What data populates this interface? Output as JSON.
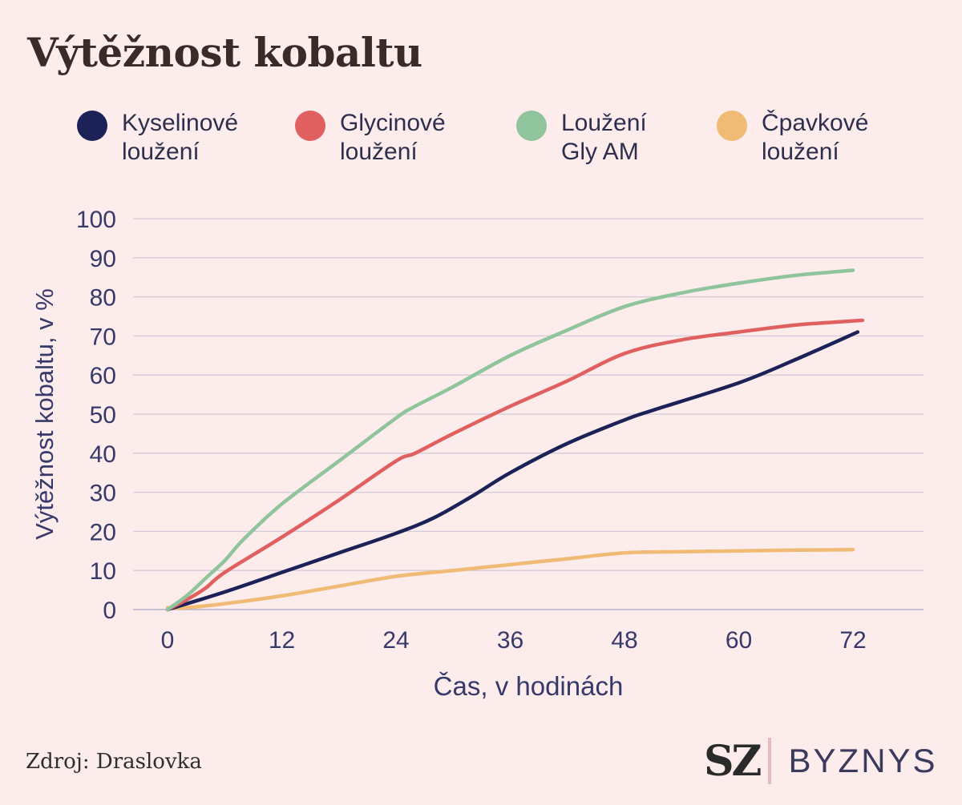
{
  "title": "Výtěžnost kobaltu",
  "source": "Zdroj: Draslovka",
  "brand": {
    "sz": "SZ",
    "byznys": "BYZNYS"
  },
  "legend": [
    {
      "line1": "Kyselinové",
      "line2": "loužení",
      "color": "#1c2257"
    },
    {
      "line1": "Glycinové",
      "line2": "loužení",
      "color": "#e0605f"
    },
    {
      "line1": "Loužení",
      "line2": "Gly AM",
      "color": "#8fc49c"
    },
    {
      "line1": "Čpavkové",
      "line2": "loužení",
      "color": "#f0bb74"
    }
  ],
  "chart_data": {
    "type": "line",
    "title": "Výtěžnost kobaltu",
    "xlabel": "Čas, v hodinách",
    "ylabel": "Výtěžnost kobaltu, v %",
    "xlim": [
      0,
      72
    ],
    "ylim": [
      0,
      100
    ],
    "xticks": [
      0,
      12,
      24,
      36,
      48,
      60,
      72
    ],
    "yticks": [
      0,
      10,
      20,
      30,
      40,
      50,
      60,
      70,
      80,
      90,
      100
    ],
    "grid": "horizontal",
    "legend_position": "top",
    "series": [
      {
        "name": "Kyselinové loužení",
        "color": "#1c2257",
        "points": [
          [
            0,
            0
          ],
          [
            6,
            4.5
          ],
          [
            12,
            9.5
          ],
          [
            18,
            14.5
          ],
          [
            24,
            19.5
          ],
          [
            28,
            23.5
          ],
          [
            32,
            29
          ],
          [
            36,
            35
          ],
          [
            42,
            42.5
          ],
          [
            48,
            48.5
          ],
          [
            51,
            51
          ],
          [
            60,
            58
          ],
          [
            66,
            64
          ],
          [
            72.5,
            71
          ]
        ]
      },
      {
        "name": "Glycinové loužení",
        "color": "#e0605f",
        "points": [
          [
            0,
            0
          ],
          [
            2,
            2.5
          ],
          [
            4,
            5.5
          ],
          [
            6,
            9.5
          ],
          [
            12,
            18.5
          ],
          [
            18,
            28
          ],
          [
            24,
            38
          ],
          [
            26,
            40
          ],
          [
            30,
            45
          ],
          [
            36,
            52
          ],
          [
            42,
            58.5
          ],
          [
            48,
            65.5
          ],
          [
            54,
            69
          ],
          [
            60,
            71
          ],
          [
            66,
            72.8
          ],
          [
            73,
            74
          ]
        ]
      },
      {
        "name": "Loužení Gly AM",
        "color": "#8fc49c",
        "points": [
          [
            0,
            0
          ],
          [
            2,
            3.5
          ],
          [
            4,
            8
          ],
          [
            6,
            12.5
          ],
          [
            8,
            18
          ],
          [
            12,
            27
          ],
          [
            18,
            38
          ],
          [
            24,
            49
          ],
          [
            26,
            52
          ],
          [
            30,
            57
          ],
          [
            36,
            65
          ],
          [
            42,
            71.5
          ],
          [
            48,
            77.5
          ],
          [
            54,
            81
          ],
          [
            60,
            83.5
          ],
          [
            66,
            85.5
          ],
          [
            72,
            86.8
          ]
        ]
      },
      {
        "name": "Čpavkové loužení",
        "color": "#f0bb74",
        "points": [
          [
            0,
            0.5
          ],
          [
            2,
            0.5
          ],
          [
            6,
            1.5
          ],
          [
            12,
            3.5
          ],
          [
            18,
            6
          ],
          [
            24,
            8.5
          ],
          [
            30,
            10
          ],
          [
            36,
            11.5
          ],
          [
            42,
            13
          ],
          [
            48,
            14.5
          ],
          [
            54,
            14.8
          ],
          [
            60,
            15
          ],
          [
            66,
            15.2
          ],
          [
            72,
            15.3
          ]
        ]
      }
    ]
  }
}
